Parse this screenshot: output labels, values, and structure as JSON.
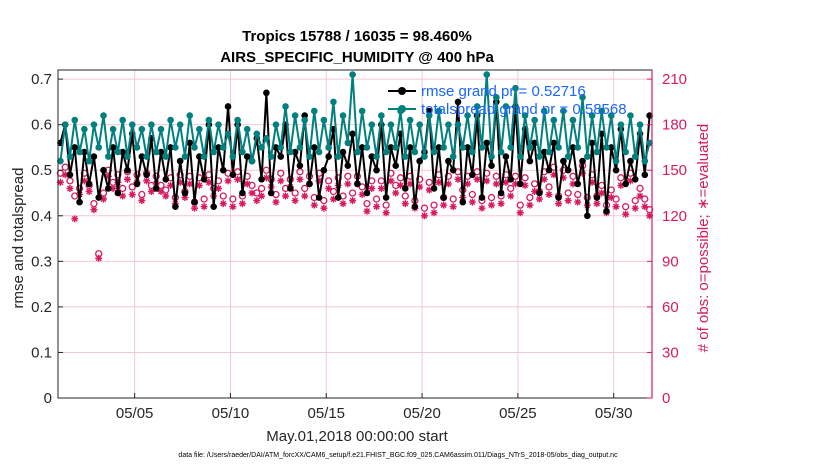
{
  "chart_data": {
    "type": "line",
    "title_line1": "Tropics 15788 / 16035 = 98.460%",
    "title_line2": "AIRS_SPECIFIC_HUMIDITY @ 400 hPa",
    "xlabel": "May.01,2018 00:00:00 start",
    "ylabel_left": "rmse and totalspread",
    "ylabel_right": "# of obs: o=possible; ∗=evaluated",
    "footnote": "data file: /Users/raeder/DAI/ATM_forcXX/CAM6_setup/f.e21.FHIST_BGC.f09_025.CAM6assim.011/Diags_NTrS_2018-05/obs_diag_output.nc",
    "x_ticks": [
      {
        "value": 5,
        "label": "05/05"
      },
      {
        "value": 10,
        "label": "05/10"
      },
      {
        "value": 15,
        "label": "05/15"
      },
      {
        "value": 20,
        "label": "05/20"
      },
      {
        "value": 25,
        "label": "05/25"
      },
      {
        "value": 30,
        "label": "05/30"
      }
    ],
    "y_left_ticks": [
      {
        "value": 0,
        "label": "0"
      },
      {
        "value": 0.1,
        "label": "0.1"
      },
      {
        "value": 0.2,
        "label": "0.2"
      },
      {
        "value": 0.3,
        "label": "0.3"
      },
      {
        "value": 0.4,
        "label": "0.4"
      },
      {
        "value": 0.5,
        "label": "0.5"
      },
      {
        "value": 0.6,
        "label": "0.6"
      },
      {
        "value": 0.7,
        "label": "0.7"
      }
    ],
    "y_right_ticks": [
      {
        "value": 0,
        "label": "0"
      },
      {
        "value": 30,
        "label": "30"
      },
      {
        "value": 60,
        "label": "60"
      },
      {
        "value": 90,
        "label": "90"
      },
      {
        "value": 120,
        "label": "120"
      },
      {
        "value": 150,
        "label": "150"
      },
      {
        "value": 180,
        "label": "180"
      },
      {
        "value": 210,
        "label": "210"
      }
    ],
    "xlim": [
      1,
      32
    ],
    "ylim_left": [
      0,
      0.72
    ],
    "ylim_right": [
      0,
      216
    ],
    "legend": [
      {
        "label": "rmse grand pr = 0.52716",
        "color": "#000000"
      },
      {
        "label": "totalspread grand pr = 0.58568",
        "color": "#00807f"
      }
    ],
    "series": [
      {
        "name": "rmse",
        "color": "#000000",
        "x": [
          1.125,
          1.375,
          1.625,
          1.875,
          2.125,
          2.375,
          2.625,
          2.875,
          3.125,
          3.375,
          3.625,
          3.875,
          4.125,
          4.375,
          4.625,
          4.875,
          5.125,
          5.375,
          5.625,
          5.875,
          6.125,
          6.375,
          6.625,
          6.875,
          7.125,
          7.375,
          7.625,
          7.875,
          8.125,
          8.375,
          8.625,
          8.875,
          9.125,
          9.375,
          9.625,
          9.875,
          10.125,
          10.375,
          10.625,
          10.875,
          11.125,
          11.375,
          11.625,
          11.875,
          12.125,
          12.375,
          12.625,
          12.875,
          13.125,
          13.375,
          13.625,
          13.875,
          14.125,
          14.375,
          14.625,
          14.875,
          15.125,
          15.375,
          15.625,
          15.875,
          16.125,
          16.375,
          16.625,
          16.875,
          17.125,
          17.375,
          17.625,
          17.875,
          18.125,
          18.375,
          18.625,
          18.875,
          19.125,
          19.375,
          19.625,
          19.875,
          20.125,
          20.375,
          20.625,
          20.875,
          21.125,
          21.375,
          21.625,
          21.875,
          22.125,
          22.375,
          22.625,
          22.875,
          23.125,
          23.375,
          23.625,
          23.875,
          24.125,
          24.375,
          24.625,
          24.875,
          25.125,
          25.375,
          25.625,
          25.875,
          26.125,
          26.375,
          26.625,
          26.875,
          27.125,
          27.375,
          27.625,
          27.875,
          28.125,
          28.375,
          28.625,
          28.875,
          29.125,
          29.375,
          29.625,
          29.875,
          30.125,
          30.375,
          30.625,
          30.875,
          31.125,
          31.375,
          31.625,
          31.875
        ],
        "values": [
          0.56,
          0.6,
          0.49,
          0.55,
          0.43,
          0.54,
          0.47,
          0.53,
          0.44,
          0.5,
          0.46,
          0.55,
          0.45,
          0.54,
          0.5,
          0.58,
          0.47,
          0.53,
          0.49,
          0.57,
          0.46,
          0.54,
          0.48,
          0.55,
          0.42,
          0.52,
          0.45,
          0.56,
          0.43,
          0.53,
          0.48,
          0.6,
          0.42,
          0.55,
          0.5,
          0.64,
          0.49,
          0.6,
          0.45,
          0.53,
          0.52,
          0.57,
          0.48,
          0.67,
          0.45,
          0.55,
          0.53,
          0.6,
          0.46,
          0.54,
          0.51,
          0.62,
          0.47,
          0.55,
          0.44,
          0.5,
          0.53,
          0.59,
          0.44,
          0.54,
          0.51,
          0.58,
          0.47,
          0.55,
          0.45,
          0.53,
          0.5,
          0.6,
          0.44,
          0.55,
          0.51,
          0.58,
          0.46,
          0.55,
          0.42,
          0.52,
          0.54,
          0.63,
          0.46,
          0.55,
          0.44,
          0.52,
          0.5,
          0.65,
          0.43,
          0.55,
          0.49,
          0.62,
          0.44,
          0.56,
          0.51,
          0.65,
          0.45,
          0.53,
          0.48,
          0.64,
          0.47,
          0.59,
          0.52,
          0.56,
          0.45,
          0.54,
          0.5,
          0.56,
          0.44,
          0.52,
          0.5,
          0.55,
          0.47,
          0.52,
          0.4,
          0.56,
          0.44,
          0.58,
          0.41,
          0.55,
          0.5,
          0.59,
          0.47,
          0.52,
          0.48,
          0.58,
          0.49,
          0.62
        ]
      },
      {
        "name": "totalspread",
        "color": "#00807f",
        "x": [
          1.125,
          1.375,
          1.625,
          1.875,
          2.125,
          2.375,
          2.625,
          2.875,
          3.125,
          3.375,
          3.625,
          3.875,
          4.125,
          4.375,
          4.625,
          4.875,
          5.125,
          5.375,
          5.625,
          5.875,
          6.125,
          6.375,
          6.625,
          6.875,
          7.125,
          7.375,
          7.625,
          7.875,
          8.125,
          8.375,
          8.625,
          8.875,
          9.125,
          9.375,
          9.625,
          9.875,
          10.125,
          10.375,
          10.625,
          10.875,
          11.125,
          11.375,
          11.625,
          11.875,
          12.125,
          12.375,
          12.625,
          12.875,
          13.125,
          13.375,
          13.625,
          13.875,
          14.125,
          14.375,
          14.625,
          14.875,
          15.125,
          15.375,
          15.625,
          15.875,
          16.125,
          16.375,
          16.625,
          16.875,
          17.125,
          17.375,
          17.625,
          17.875,
          18.125,
          18.375,
          18.625,
          18.875,
          19.125,
          19.375,
          19.625,
          19.875,
          20.125,
          20.375,
          20.625,
          20.875,
          21.125,
          21.375,
          21.625,
          21.875,
          22.125,
          22.375,
          22.625,
          22.875,
          23.125,
          23.375,
          23.625,
          23.875,
          24.125,
          24.375,
          24.625,
          24.875,
          25.125,
          25.375,
          25.625,
          25.875,
          26.125,
          26.375,
          26.625,
          26.875,
          27.125,
          27.375,
          27.625,
          27.875,
          28.125,
          28.375,
          28.625,
          28.875,
          29.125,
          29.375,
          29.625,
          29.875,
          30.125,
          30.375,
          30.625,
          30.875,
          31.125,
          31.375,
          31.625,
          31.875
        ],
        "values": [
          0.52,
          0.6,
          0.53,
          0.61,
          0.54,
          0.59,
          0.52,
          0.6,
          0.55,
          0.62,
          0.53,
          0.59,
          0.54,
          0.61,
          0.53,
          0.6,
          0.55,
          0.59,
          0.53,
          0.6,
          0.54,
          0.59,
          0.53,
          0.61,
          0.55,
          0.6,
          0.53,
          0.62,
          0.55,
          0.59,
          0.53,
          0.61,
          0.54,
          0.6,
          0.55,
          0.58,
          0.53,
          0.61,
          0.54,
          0.59,
          0.52,
          0.58,
          0.55,
          0.57,
          0.53,
          0.6,
          0.55,
          0.64,
          0.54,
          0.62,
          0.55,
          0.61,
          0.53,
          0.63,
          0.54,
          0.61,
          0.55,
          0.65,
          0.53,
          0.62,
          0.56,
          0.71,
          0.54,
          0.63,
          0.55,
          0.6,
          0.53,
          0.62,
          0.54,
          0.6,
          0.55,
          0.63,
          0.53,
          0.61,
          0.54,
          0.6,
          0.53,
          0.62,
          0.54,
          0.63,
          0.55,
          0.6,
          0.53,
          0.6,
          0.55,
          0.62,
          0.54,
          0.64,
          0.55,
          0.71,
          0.53,
          0.66,
          0.54,
          0.64,
          0.55,
          0.68,
          0.53,
          0.62,
          0.55,
          0.61,
          0.53,
          0.63,
          0.54,
          0.61,
          0.55,
          0.63,
          0.53,
          0.61,
          0.55,
          0.66,
          0.53,
          0.62,
          0.54,
          0.63,
          0.55,
          0.62,
          0.52,
          0.6,
          0.54,
          0.62,
          0.53,
          0.6,
          0.52,
          0.56
        ]
      }
    ],
    "obs_possible": {
      "color": "#d81b60",
      "x": [
        1.125,
        1.375,
        1.625,
        1.875,
        2.125,
        2.375,
        2.625,
        2.875,
        3.125,
        3.375,
        3.625,
        3.875,
        4.125,
        4.375,
        4.625,
        4.875,
        5.125,
        5.375,
        5.625,
        5.875,
        6.125,
        6.375,
        6.625,
        6.875,
        7.125,
        7.375,
        7.625,
        7.875,
        8.125,
        8.375,
        8.625,
        8.875,
        9.125,
        9.375,
        9.625,
        9.875,
        10.125,
        10.375,
        10.625,
        10.875,
        11.125,
        11.375,
        11.625,
        11.875,
        12.125,
        12.375,
        12.625,
        12.875,
        13.125,
        13.375,
        13.625,
        13.875,
        14.125,
        14.375,
        14.625,
        14.875,
        15.125,
        15.375,
        15.625,
        15.875,
        16.125,
        16.375,
        16.625,
        16.875,
        17.125,
        17.375,
        17.625,
        17.875,
        18.125,
        18.375,
        18.625,
        18.875,
        19.125,
        19.375,
        19.625,
        19.875,
        20.125,
        20.375,
        20.625,
        20.875,
        21.125,
        21.375,
        21.625,
        21.875,
        22.125,
        22.375,
        22.625,
        22.875,
        23.125,
        23.375,
        23.625,
        23.875,
        24.125,
        24.375,
        24.625,
        24.875,
        25.125,
        25.375,
        25.625,
        25.875,
        26.125,
        26.375,
        26.625,
        26.875,
        27.125,
        27.375,
        27.625,
        27.875,
        28.125,
        28.375,
        28.625,
        28.875,
        29.125,
        29.375,
        29.625,
        29.875,
        30.125,
        30.375,
        30.625,
        30.875,
        31.125,
        31.375,
        31.625,
        31.875
      ],
      "values": [
        148,
        152,
        143,
        133,
        138,
        148,
        140,
        128,
        95,
        135,
        150,
        142,
        147,
        138,
        149,
        139,
        147,
        134,
        148,
        140,
        146,
        140,
        137,
        145,
        132,
        147,
        136,
        146,
        129,
        145,
        131,
        147,
        138,
        143,
        133,
        148,
        131,
        149,
        133,
        146,
        140,
        135,
        138,
        150,
        144,
        134,
        148,
        138,
        144,
        135,
        149,
        138,
        146,
        132,
        148,
        130,
        143,
        136,
        145,
        133,
        146,
        135,
        146,
        139,
        128,
        143,
        131,
        143,
        127,
        148,
        140,
        145,
        133,
        146,
        130,
        144,
        125,
        142,
        127,
        147,
        132,
        146,
        131,
        149,
        137,
        146,
        134,
        149,
        130,
        148,
        132,
        146,
        133,
        147,
        138,
        146,
        127,
        145,
        132,
        141,
        136,
        149,
        139,
        152,
        133,
        150,
        135,
        146,
        134,
        153,
        132,
        147,
        133,
        140,
        127,
        137,
        131,
        145,
        126,
        148,
        130,
        138,
        131,
        124
      ]
    },
    "obs_evaluated": {
      "color": "#d81b60",
      "x": [
        1.125,
        1.375,
        1.625,
        1.875,
        2.125,
        2.375,
        2.625,
        2.875,
        3.125,
        3.375,
        3.625,
        3.875,
        4.125,
        4.375,
        4.625,
        4.875,
        5.125,
        5.375,
        5.625,
        5.875,
        6.125,
        6.375,
        6.625,
        6.875,
        7.125,
        7.375,
        7.625,
        7.875,
        8.125,
        8.375,
        8.625,
        8.875,
        9.125,
        9.375,
        9.625,
        9.875,
        10.125,
        10.375,
        10.625,
        10.875,
        11.125,
        11.375,
        11.625,
        11.875,
        12.125,
        12.375,
        12.625,
        12.875,
        13.125,
        13.375,
        13.625,
        13.875,
        14.125,
        14.375,
        14.625,
        14.875,
        15.125,
        15.375,
        15.625,
        15.875,
        16.125,
        16.375,
        16.625,
        16.875,
        17.125,
        17.375,
        17.625,
        17.875,
        18.125,
        18.375,
        18.625,
        18.875,
        19.125,
        19.375,
        19.625,
        19.875,
        20.125,
        20.375,
        20.625,
        20.875,
        21.125,
        21.375,
        21.625,
        21.875,
        22.125,
        22.375,
        22.625,
        22.875,
        23.125,
        23.375,
        23.625,
        23.875,
        24.125,
        24.375,
        24.625,
        24.875,
        25.125,
        25.375,
        25.625,
        25.875,
        26.125,
        26.375,
        26.625,
        26.875,
        27.125,
        27.375,
        27.625,
        27.875,
        28.125,
        28.375,
        28.625,
        28.875,
        29.125,
        29.375,
        29.625,
        29.875,
        30.125,
        30.375,
        30.625,
        30.875,
        31.125,
        31.375,
        31.625,
        31.875
      ],
      "values": [
        142,
        147,
        138,
        118,
        134,
        143,
        136,
        124,
        92,
        131,
        146,
        138,
        142,
        133,
        144,
        134,
        142,
        130,
        143,
        136,
        141,
        136,
        133,
        140,
        128,
        142,
        132,
        141,
        125,
        140,
        126,
        142,
        133,
        138,
        128,
        143,
        126,
        144,
        128,
        141,
        135,
        130,
        133,
        145,
        139,
        129,
        143,
        133,
        139,
        130,
        144,
        133,
        141,
        127,
        143,
        125,
        138,
        131,
        140,
        128,
        141,
        130,
        141,
        134,
        123,
        138,
        126,
        138,
        122,
        143,
        135,
        140,
        128,
        141,
        125,
        139,
        120,
        137,
        122,
        142,
        127,
        141,
        126,
        144,
        132,
        141,
        129,
        144,
        125,
        143,
        127,
        141,
        128,
        142,
        133,
        141,
        122,
        140,
        127,
        136,
        131,
        144,
        134,
        147,
        128,
        145,
        130,
        141,
        129,
        148,
        127,
        142,
        128,
        135,
        122,
        132,
        126,
        140,
        121,
        143,
        125,
        133,
        126,
        120
      ]
    }
  }
}
